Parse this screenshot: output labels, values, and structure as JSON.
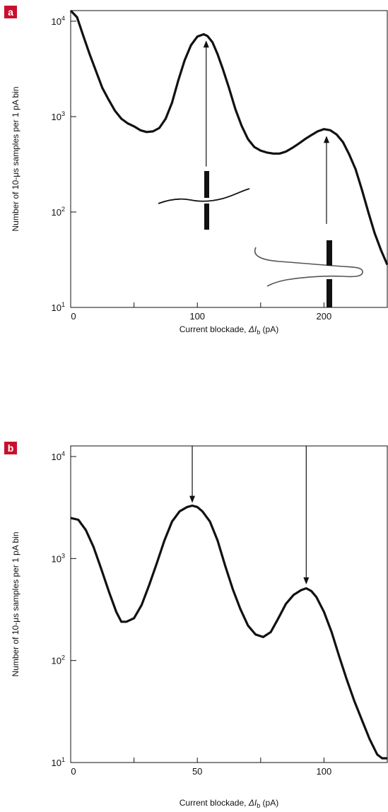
{
  "chart_data": [
    {
      "type": "line",
      "panel": "a",
      "xlabel_main": "Current blockade, ",
      "xlabel_symbol": "ΔI",
      "xlabel_sub": "b",
      "xlabel_unit": " (pA)",
      "ylabel": "Number of 10-μs samples per 1 pA bin",
      "xlim": [
        0,
        250
      ],
      "ylim_log10": [
        1,
        4.2
      ],
      "y_scale": "log",
      "x_ticks": [
        0,
        50,
        100,
        150,
        200,
        250
      ],
      "x_tick_labels": [
        "0",
        "",
        "100",
        "",
        "200",
        ""
      ],
      "y_ticks": [
        {
          "base": "10",
          "exp": "4",
          "log": 4
        },
        {
          "base": "10",
          "exp": "3",
          "log": 3
        },
        {
          "base": "10",
          "exp": "2",
          "log": 2
        },
        {
          "base": "10",
          "exp": "1",
          "log": 1
        }
      ],
      "series": [
        {
          "x": [
            0,
            5,
            10,
            15,
            20,
            25,
            30,
            35,
            40,
            45,
            50,
            55,
            60,
            65,
            70,
            75,
            80,
            85,
            90,
            95,
            100,
            105,
            108,
            112,
            116,
            120,
            125,
            130,
            135,
            140,
            145,
            150,
            155,
            160,
            165,
            170,
            175,
            180,
            185,
            190,
            195,
            200,
            205,
            210,
            215,
            220,
            225,
            230,
            235,
            240,
            245,
            250
          ],
          "y": [
            15000,
            11000,
            7000,
            4500,
            3000,
            2000,
            1500,
            1150,
            950,
            850,
            790,
            720,
            690,
            700,
            760,
            950,
            1400,
            2400,
            3900,
            5600,
            6900,
            7300,
            7000,
            6000,
            4500,
            3200,
            2000,
            1200,
            800,
            580,
            480,
            440,
            420,
            410,
            410,
            430,
            470,
            520,
            580,
            640,
            700,
            740,
            720,
            650,
            540,
            400,
            280,
            170,
            100,
            60,
            40,
            28
          ]
        }
      ],
      "arrows": [
        {
          "x": 107,
          "y_from": 300,
          "y_to": 6500
        },
        {
          "x": 202,
          "y_from": 75,
          "y_to": 650
        }
      ]
    },
    {
      "type": "line",
      "panel": "b",
      "xlabel_main": "Current blockade, ",
      "xlabel_symbol": "ΔI",
      "xlabel_sub": "b",
      "xlabel_unit": " (pA)",
      "ylabel": "Number of 10-μs samples per 1 pA bin",
      "xlim": [
        0,
        125
      ],
      "ylim_log10": [
        1,
        4.2
      ],
      "y_scale": "log",
      "x_ticks": [
        0,
        25,
        50,
        75,
        100,
        125
      ],
      "x_tick_labels": [
        "0",
        "",
        "50",
        "",
        "100",
        ""
      ],
      "y_ticks": [
        {
          "base": "10",
          "exp": "4",
          "log": 4
        },
        {
          "base": "10",
          "exp": "3",
          "log": 3
        },
        {
          "base": "10",
          "exp": "2",
          "log": 2
        },
        {
          "base": "10",
          "exp": "1",
          "log": 1
        }
      ],
      "series": [
        {
          "x": [
            0,
            3,
            6,
            9,
            12,
            15,
            18,
            20,
            22,
            25,
            28,
            31,
            34,
            37,
            40,
            43,
            46,
            48,
            50,
            52,
            55,
            58,
            61,
            64,
            67,
            70,
            73,
            76,
            79,
            82,
            85,
            88,
            91,
            93,
            95,
            97,
            100,
            103,
            106,
            109,
            112,
            115,
            118,
            121,
            123,
            125
          ],
          "y": [
            2500,
            2400,
            1900,
            1300,
            800,
            480,
            300,
            240,
            240,
            260,
            350,
            550,
            900,
            1500,
            2300,
            2900,
            3200,
            3300,
            3200,
            2900,
            2300,
            1500,
            850,
            500,
            320,
            220,
            180,
            170,
            190,
            260,
            360,
            440,
            490,
            510,
            480,
            420,
            300,
            190,
            110,
            65,
            40,
            26,
            17,
            12,
            11,
            11
          ]
        }
      ],
      "arrows": [
        {
          "x": 48,
          "y_from": 15000,
          "y_to": 3400
        },
        {
          "x": 93,
          "y_from": 15000,
          "y_to": 540
        }
      ]
    }
  ]
}
